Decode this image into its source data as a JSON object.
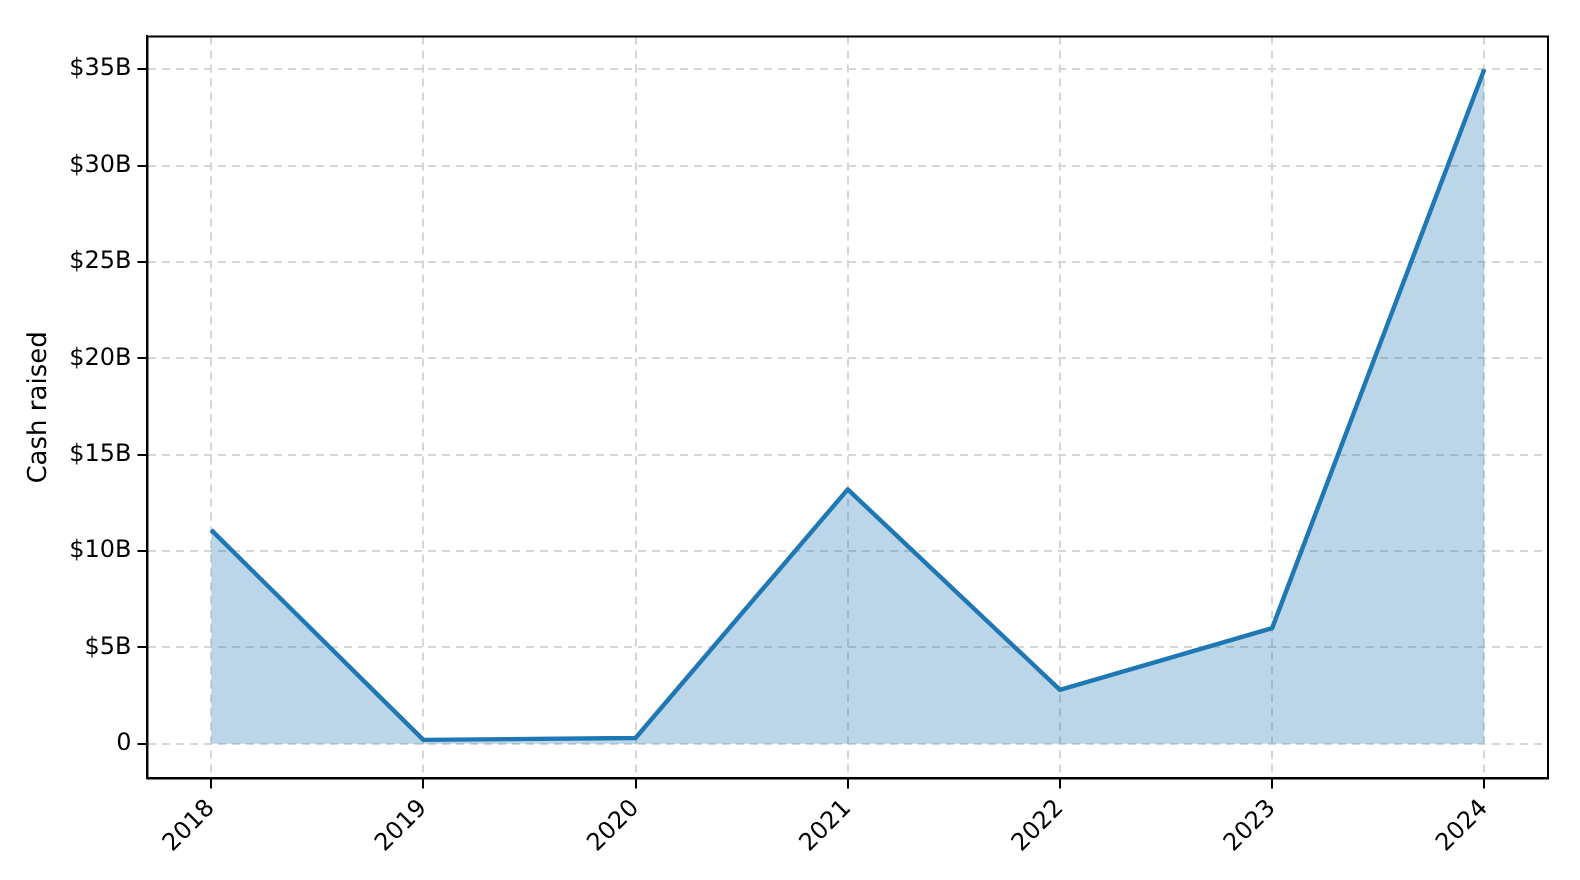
{
  "chart_data": {
    "type": "area",
    "ylabel": "Cash raised",
    "x": [
      2018,
      2019,
      2020,
      2021,
      2022,
      2023,
      2024
    ],
    "series": [
      {
        "color": "#1f77b4",
        "values": [
          11.1,
          0.2,
          0.3,
          13.2,
          2.8,
          6.0,
          35.0
        ]
      }
    ],
    "xlim": [
      2017.7,
      2024.3
    ],
    "xticks": [
      2018,
      2019,
      2020,
      2021,
      2022,
      2023,
      2024
    ],
    "ylim": [
      -1.8,
      36.7
    ],
    "yticks": [
      0,
      {
        "value": 5,
        "label": "$5B"
      },
      {
        "value": 10,
        "label": "$10B"
      },
      {
        "value": 15,
        "label": "$15B"
      },
      {
        "value": 20,
        "label": "$20B"
      },
      {
        "value": 25,
        "label": "$25B"
      },
      {
        "value": 30,
        "label": "$30B"
      },
      {
        "value": 35,
        "label": "$35B"
      }
    ],
    "grid": true,
    "legend": false,
    "marker": "none",
    "line_style": "solid"
  }
}
